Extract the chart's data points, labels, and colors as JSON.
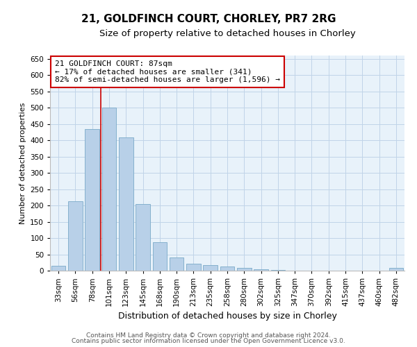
{
  "title1": "21, GOLDFINCH COURT, CHORLEY, PR7 2RG",
  "title2": "Size of property relative to detached houses in Chorley",
  "xlabel": "Distribution of detached houses by size in Chorley",
  "ylabel": "Number of detached properties",
  "categories": [
    "33sqm",
    "56sqm",
    "78sqm",
    "101sqm",
    "123sqm",
    "145sqm",
    "168sqm",
    "190sqm",
    "213sqm",
    "235sqm",
    "258sqm",
    "280sqm",
    "302sqm",
    "325sqm",
    "347sqm",
    "370sqm",
    "392sqm",
    "415sqm",
    "437sqm",
    "460sqm",
    "482sqm"
  ],
  "values": [
    15,
    213,
    435,
    500,
    408,
    205,
    87,
    40,
    22,
    17,
    12,
    8,
    5,
    2,
    1,
    1,
    1,
    0,
    0,
    0,
    8
  ],
  "bar_color": "#b8d0e8",
  "bar_edge_color": "#7aaac8",
  "bar_width": 0.85,
  "ylim": [
    0,
    660
  ],
  "yticks": [
    0,
    50,
    100,
    150,
    200,
    250,
    300,
    350,
    400,
    450,
    500,
    550,
    600,
    650
  ],
  "grid_color": "#c0d4e8",
  "background_color": "#e8f2fa",
  "red_line_x": 2.5,
  "red_line_color": "#cc0000",
  "annotation_text": "21 GOLDFINCH COURT: 87sqm\n← 17% of detached houses are smaller (341)\n82% of semi-detached houses are larger (1,596) →",
  "annotation_box_color": "#ffffff",
  "annotation_box_edge": "#cc0000",
  "footer1": "Contains HM Land Registry data © Crown copyright and database right 2024.",
  "footer2": "Contains public sector information licensed under the Open Government Licence v3.0.",
  "title1_fontsize": 11,
  "title2_fontsize": 9.5,
  "xlabel_fontsize": 9,
  "ylabel_fontsize": 8,
  "tick_fontsize": 7.5,
  "annotation_fontsize": 8,
  "footer_fontsize": 6.5
}
